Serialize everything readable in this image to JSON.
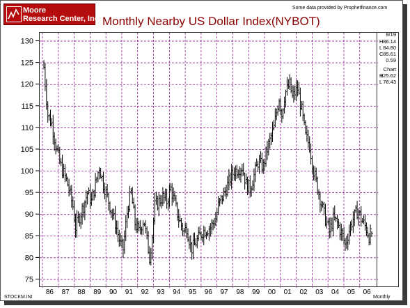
{
  "header": {
    "logo_line1": "Moore",
    "logo_line2": "Research Center, Inc.",
    "title": "Monthly Nearby US Dollar Index(NYBOT)",
    "source": "Some data provided by Prophetfinance.com"
  },
  "side_panel": {
    "date": "9/19",
    "high_label": "H",
    "high_value": "86.14",
    "low_label": "L",
    "low_value": "84.80",
    "close_label": "C",
    "close_value": "85.61",
    "change_value": "0.59",
    "chart_label": "Chart",
    "chart_high_label": "H",
    "chart_high_value": "125.62",
    "chart_low_label": "L",
    "chart_low_value": "78.43"
  },
  "footer": {
    "left": "STOCKM.INI",
    "right": "Monthly"
  },
  "colors": {
    "title": "#8b0000",
    "logo_bg": "#b50d0d",
    "grid": "#800080",
    "bars": "#000000"
  },
  "chart_data": {
    "type": "ohlc",
    "title": "Monthly Nearby US Dollar Index(NYBOT)",
    "xlabel": "",
    "ylabel": "",
    "ylim": [
      75,
      130
    ],
    "yticks": [
      75,
      80,
      85,
      90,
      95,
      100,
      105,
      110,
      115,
      120,
      125,
      130
    ],
    "year_labels": [
      "86",
      "87",
      "88",
      "89",
      "90",
      "91",
      "92",
      "93",
      "94",
      "95",
      "96",
      "97",
      "98",
      "99",
      "00",
      "01",
      "02",
      "03",
      "04",
      "05",
      "06"
    ],
    "grid": true,
    "anchors": [
      [
        1986.0,
        124
      ],
      [
        1986.25,
        113
      ],
      [
        1986.5,
        111
      ],
      [
        1986.75,
        106
      ],
      [
        1987.0,
        102
      ],
      [
        1987.5,
        97
      ],
      [
        1987.83,
        92
      ],
      [
        1988.0,
        87
      ],
      [
        1988.5,
        92
      ],
      [
        1988.75,
        95
      ],
      [
        1989.0,
        93
      ],
      [
        1989.5,
        101
      ],
      [
        1989.75,
        97
      ],
      [
        1990.0,
        94
      ],
      [
        1990.5,
        88
      ],
      [
        1990.83,
        83
      ],
      [
        1991.0,
        82
      ],
      [
        1991.3,
        92
      ],
      [
        1991.5,
        95
      ],
      [
        1991.75,
        88
      ],
      [
        1992.0,
        86
      ],
      [
        1992.3,
        89
      ],
      [
        1992.5,
        84
      ],
      [
        1992.67,
        80
      ],
      [
        1992.83,
        85
      ],
      [
        1993.0,
        92
      ],
      [
        1993.5,
        94
      ],
      [
        1993.75,
        93
      ],
      [
        1994.0,
        96
      ],
      [
        1994.5,
        89
      ],
      [
        1994.83,
        86
      ],
      [
        1995.0,
        87
      ],
      [
        1995.3,
        82
      ],
      [
        1995.5,
        83
      ],
      [
        1995.83,
        85
      ],
      [
        1996.0,
        86
      ],
      [
        1996.5,
        87
      ],
      [
        1996.83,
        89
      ],
      [
        1997.0,
        92
      ],
      [
        1997.5,
        96
      ],
      [
        1997.83,
        99
      ],
      [
        1998.0,
        100
      ],
      [
        1998.5,
        101
      ],
      [
        1998.75,
        97
      ],
      [
        1999.0,
        96
      ],
      [
        1999.5,
        102
      ],
      [
        1999.83,
        101
      ],
      [
        2000.0,
        104
      ],
      [
        2000.5,
        110
      ],
      [
        2000.83,
        117
      ],
      [
        2001.0,
        113
      ],
      [
        2001.2,
        118
      ],
      [
        2001.5,
        120
      ],
      [
        2001.67,
        117
      ],
      [
        2001.83,
        118
      ],
      [
        2002.0,
        119
      ],
      [
        2002.25,
        114
      ],
      [
        2002.5,
        108
      ],
      [
        2002.75,
        106
      ],
      [
        2003.0,
        100
      ],
      [
        2003.33,
        95
      ],
      [
        2003.67,
        90
      ],
      [
        2004.0,
        86
      ],
      [
        2004.25,
        89
      ],
      [
        2004.5,
        88
      ],
      [
        2004.83,
        85
      ],
      [
        2005.0,
        83
      ],
      [
        2005.3,
        87
      ],
      [
        2005.5,
        89
      ],
      [
        2005.8,
        91
      ],
      [
        2006.0,
        89
      ],
      [
        2006.3,
        87
      ],
      [
        2006.5,
        85
      ],
      [
        2006.67,
        85.6
      ]
    ],
    "max_high": 125.62,
    "min_low": 78.43,
    "last_bar": {
      "high": 86.14,
      "low": 84.8,
      "close": 85.61
    }
  }
}
